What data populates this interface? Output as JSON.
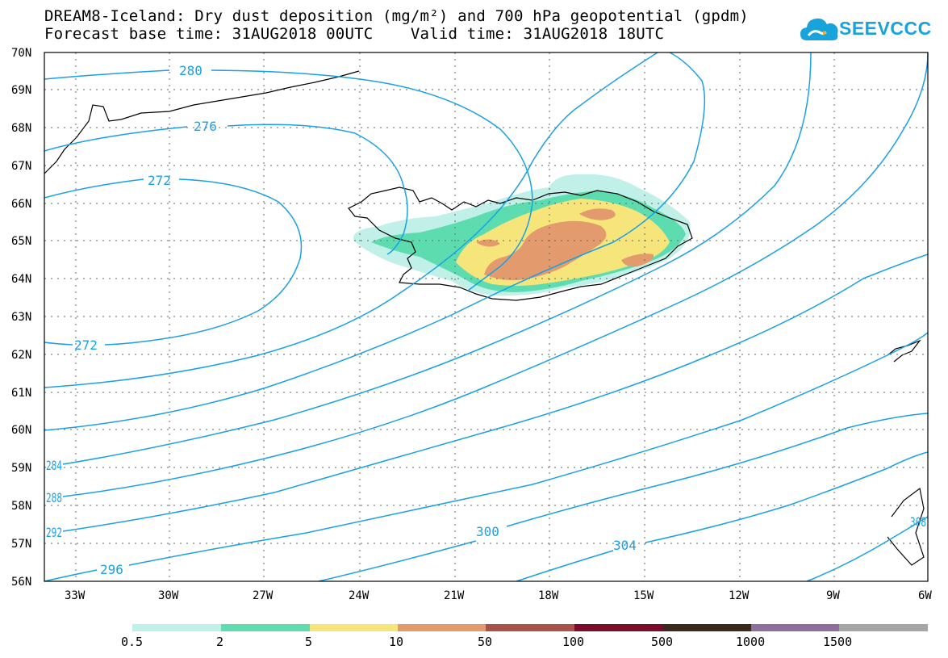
{
  "header": {
    "title_line1": "DREAM8-Iceland: Dry dust deposition (mg/m²) and 700 hPa geopotential (gpdm)",
    "title_line2": "Forecast base time: 31AUG2018 00UTC    Valid time: 31AUG2018 18UTC"
  },
  "logo": {
    "text": "SEEVCCC",
    "icon": "cloud-icon",
    "color": "#18a3dd"
  },
  "map": {
    "lat_labels": [
      "70N",
      "69N",
      "68N",
      "67N",
      "66N",
      "65N",
      "64N",
      "63N",
      "62N",
      "61N",
      "60N",
      "59N",
      "58N",
      "57N",
      "56N"
    ],
    "lon_labels": [
      "33W",
      "30W",
      "27W",
      "24W",
      "21W",
      "18W",
      "15W",
      "12W",
      "9W",
      "6W"
    ],
    "contour_color": "#1aa0e6",
    "contour_labels": [
      "280",
      "276",
      "272",
      "272",
      "284",
      "288",
      "292",
      "296",
      "300",
      "304",
      "308"
    ]
  },
  "colorbar": {
    "labels": [
      "0.5",
      "2",
      "5",
      "10",
      "50",
      "100",
      "500",
      "1000",
      "1500"
    ],
    "colors": [
      "#c0f0e8",
      "#5ddcb0",
      "#f5e57a",
      "#e39a6c",
      "#a9524a",
      "#7c0b2b",
      "#3a2a1e",
      "#8e6f9c",
      "#a6a6a6"
    ]
  }
}
